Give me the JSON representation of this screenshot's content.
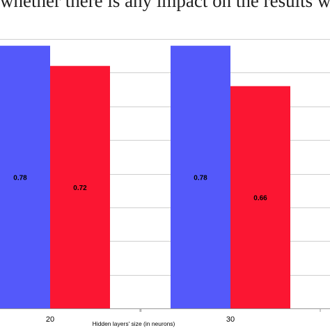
{
  "caption_text": "whether there is any impact on the results w",
  "chart_data": {
    "type": "bar",
    "categories": [
      "20",
      "30"
    ],
    "series": [
      {
        "values": [
          0.78,
          0.78
        ],
        "color": "#5459fa"
      },
      {
        "values": [
          0.72,
          0.66
        ],
        "color": "#fb1632"
      }
    ],
    "xlabel": "Hidden layers' size (in neurons)",
    "ylabel": "",
    "ylim": [
      0,
      0.8
    ],
    "grid": true,
    "gridline_color": "#cfcfcf",
    "axis_color": "#999999"
  }
}
